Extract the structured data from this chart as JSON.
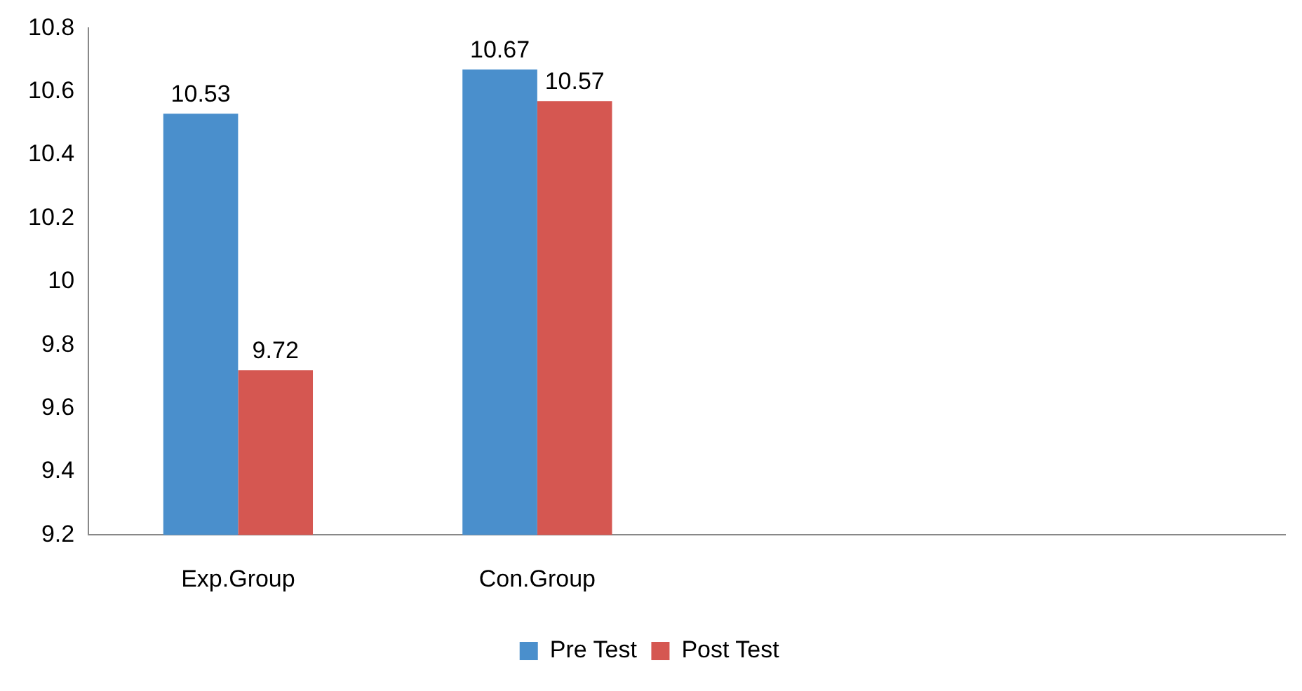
{
  "chart_data": {
    "type": "bar",
    "categories": [
      "Exp.Group",
      "Con.Group",
      null,
      null
    ],
    "series": [
      {
        "name": "Pre Test",
        "color": "#4a8fcc",
        "values": [
          10.53,
          10.67,
          null,
          null
        ]
      },
      {
        "name": "Post Test",
        "color": "#d55751",
        "values": [
          9.72,
          10.57,
          null,
          null
        ]
      }
    ],
    "ylim": [
      9.2,
      10.8
    ],
    "yticks": [
      9.2,
      9.4,
      9.6,
      9.8,
      10,
      10.2,
      10.4,
      10.6,
      10.8
    ],
    "grid": false,
    "legend": "bottom",
    "data_labels": true
  }
}
